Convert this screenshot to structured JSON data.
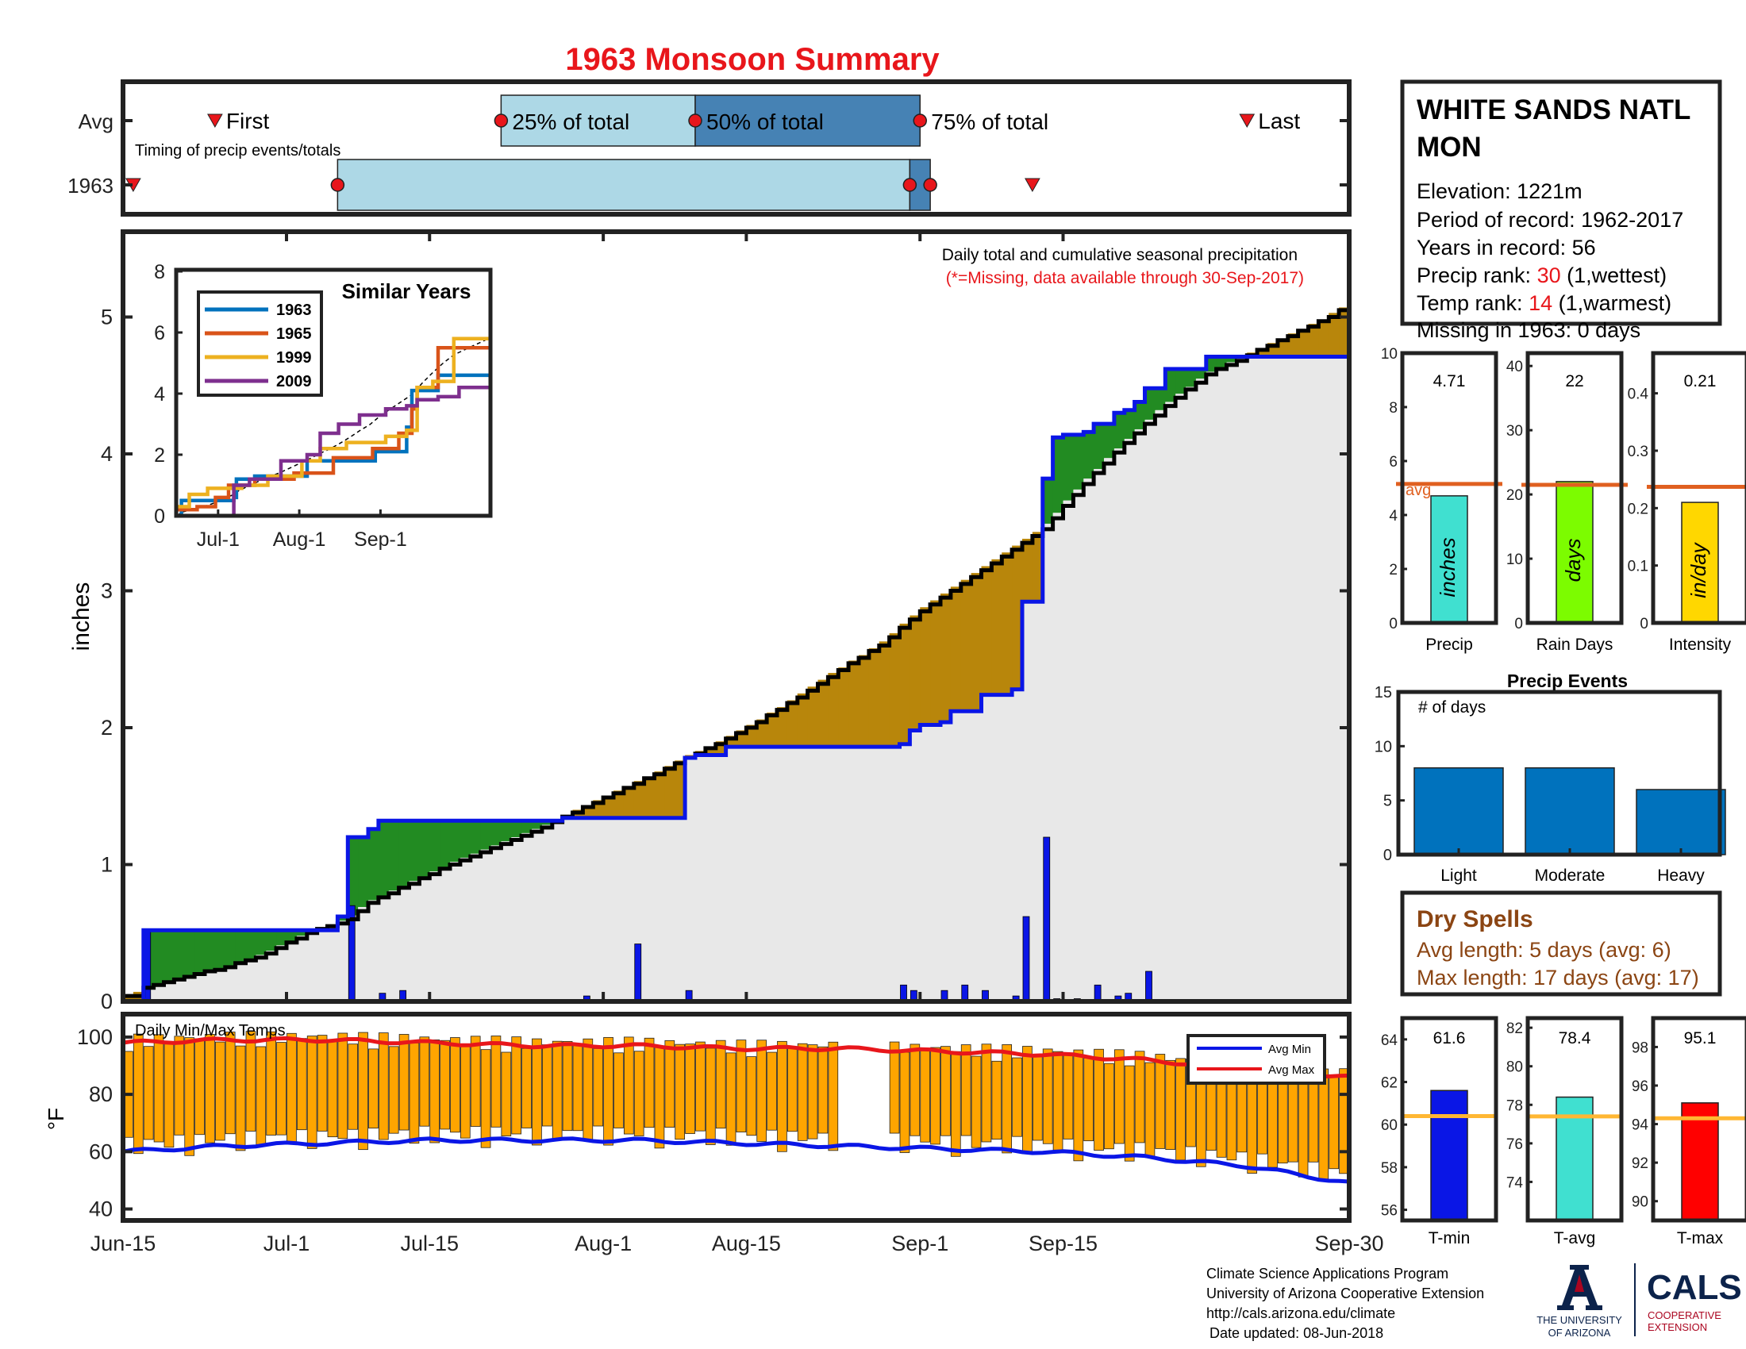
{
  "title": "1963 Monsoon Summary",
  "colors": {
    "title": "#e8161b",
    "cumYear": "#0a16e6",
    "cumAvg": "#000000",
    "aboveFill": "#228b22",
    "belowFill": "#b8860b",
    "baseFill": "#e8e8e8",
    "dailyBar": "#0a16e6",
    "tempBar": "#ffa500",
    "avgMin": "#0a16e6",
    "avgMax": "#e8161b",
    "refLine": "#e06020",
    "tempRef": "#ffb733",
    "lightBlue": "#add8e6",
    "steelBlue": "#4682b4",
    "eventBar": "#0072bd",
    "dry": "#8b4513",
    "uaNavy": "#0c234b",
    "uaRed": "#ab0520"
  },
  "timing": {
    "row_labels": [
      "Avg",
      "1963"
    ],
    "caption": "Timing of precip events/totals",
    "first_label": "First",
    "last_label": "Last",
    "pct25_label": "25% of total",
    "pct50_label": "50% of total",
    "pct75_label": "75% of total",
    "avg": {
      "first": 9,
      "p25": 37,
      "p50": 56,
      "p75": 78,
      "last": 110
    },
    "year": {
      "first": 1,
      "p25": 21,
      "p50": 77,
      "p75": 79,
      "last": 89
    }
  },
  "station": {
    "name": "WHITE SANDS NATL MON",
    "elevation": "Elevation: 1221m",
    "period": "Period of record: 1962-2017",
    "years": "Years in record: 56",
    "precip_rank_label": "Precip rank: ",
    "precip_rank": "30",
    "precip_rank_note": " (1,wettest)",
    "temp_rank_label": "Temp rank: ",
    "temp_rank": "14",
    "temp_rank_note": " (1,warmest)",
    "missing": "Missing in 1963: 0 days"
  },
  "main_chart": {
    "caption": "Daily total and cumulative seasonal precipitation",
    "missing_note": "(*=Missing, data available through 30-Sep-2017)",
    "ylabel": "inches",
    "y_ticks": [
      "0",
      "1",
      "2",
      "3",
      "4",
      "5"
    ],
    "x_ticks": [
      "Jun-15",
      "Jul-1",
      "Jul-15",
      "Aug-1",
      "Aug-15",
      "Sep-1",
      "Sep-15",
      "Sep-30"
    ]
  },
  "inset": {
    "title": "Similar Years",
    "y_ticks": [
      "0",
      "2",
      "4",
      "6",
      "8"
    ],
    "x_ticks": [
      "Jul-1",
      "Aug-1",
      "Sep-1"
    ],
    "legend": [
      "1963",
      "1965",
      "1999",
      "2009"
    ],
    "series_colors": [
      "#0072bd",
      "#d95319",
      "#edb120",
      "#7e2f8e"
    ]
  },
  "temp_chart": {
    "title": "Daily Min/Max Temps",
    "ylabel": "°F",
    "y_ticks": [
      "40",
      "60",
      "80",
      "100"
    ],
    "legend_min": "Avg Min",
    "legend_max": "Avg Max"
  },
  "stats": {
    "precip": {
      "label": "Precip",
      "value": "4.71",
      "unit": "inches",
      "avg": 5.15,
      "ticks": [
        "0",
        "2",
        "4",
        "6",
        "8",
        "10"
      ],
      "avg_label": "avg"
    },
    "raindays": {
      "label": "Rain Days",
      "value": "22",
      "unit": "days",
      "avg": 21.5,
      "ticks": [
        "0",
        "10",
        "20",
        "30",
        "40"
      ]
    },
    "intensity": {
      "label": "Intensity",
      "value": "0.21",
      "unit": "in/day",
      "avg": 0.237,
      "ticks": [
        "0",
        "0.1",
        "0.2",
        "0.3",
        "0.4"
      ]
    }
  },
  "events": {
    "title": "Precip Events",
    "ylabel": "# of days",
    "ticks": [
      "0",
      "5",
      "10",
      "15"
    ],
    "categories": [
      "Light",
      "Moderate",
      "Heavy"
    ],
    "values": [
      8,
      8,
      6
    ]
  },
  "dry_spells": {
    "title": "Dry Spells",
    "avg_length": "Avg length: 5 days (avg: 6)",
    "max_length": "Max length: 17 days (avg: 17)"
  },
  "temp_stats": {
    "tmin": {
      "label": "T-min",
      "value": "61.6",
      "avg": 60.4,
      "ticks": [
        "56",
        "58",
        "60",
        "62",
        "64"
      ]
    },
    "tavg": {
      "label": "T-avg",
      "value": "78.4",
      "avg": 77.4,
      "ticks": [
        "74",
        "76",
        "78",
        "80",
        "82"
      ]
    },
    "tmax": {
      "label": "T-max",
      "value": "95.1",
      "avg": 94.3,
      "ticks": [
        "90",
        "92",
        "94",
        "96",
        "98"
      ]
    }
  },
  "footer": {
    "line1": "Climate Science Applications Program",
    "line2": "University of Arizona Cooperative Extension",
    "line3": "http://cals.arizona.edu/climate",
    "line4": "Date updated: 08-Jun-2018",
    "ua_line1": "THE UNIVERSITY",
    "ua_line2": "OF ARIZONA",
    "cals": "CALS",
    "cals_sub1": "COOPERATIVE",
    "cals_sub2": "EXTENSION"
  },
  "chart_data": [
    {
      "type": "line",
      "title": "Daily total and cumulative seasonal precipitation",
      "ylabel": "inches",
      "x_range": [
        "Jun-15",
        "Sep-30"
      ],
      "ylim": [
        0,
        5.6
      ],
      "series": [
        {
          "name": "1963",
          "points": [
            [
              0,
              0.0
            ],
            [
              1,
              0.0
            ],
            [
              2,
              0.52
            ],
            [
              20,
              0.52
            ],
            [
              21,
              0.62
            ],
            [
              22,
              1.2
            ],
            [
              23,
              1.2
            ],
            [
              24,
              1.26
            ],
            [
              25,
              1.32
            ],
            [
              38,
              1.32
            ],
            [
              39,
              1.32
            ],
            [
              42,
              1.32
            ],
            [
              43,
              1.34
            ],
            [
              53,
              1.34
            ],
            [
              54,
              1.34
            ],
            [
              55,
              1.78
            ],
            [
              56,
              1.8
            ],
            [
              58,
              1.8
            ],
            [
              59,
              1.86
            ],
            [
              75,
              1.86
            ],
            [
              76,
              1.88
            ],
            [
              77,
              1.98
            ],
            [
              78,
              2.02
            ],
            [
              80,
              2.04
            ],
            [
              81,
              2.12
            ],
            [
              83,
              2.12
            ],
            [
              84,
              2.24
            ],
            [
              86,
              2.24
            ],
            [
              87,
              2.28
            ],
            [
              88,
              2.92
            ],
            [
              89,
              2.92
            ],
            [
              90,
              3.82
            ],
            [
              91,
              4.12
            ],
            [
              92,
              4.14
            ],
            [
              94,
              4.16
            ],
            [
              95,
              4.22
            ],
            [
              97,
              4.3
            ],
            [
              98,
              4.32
            ],
            [
              99,
              4.38
            ],
            [
              100,
              4.48
            ],
            [
              101,
              4.48
            ],
            [
              102,
              4.62
            ],
            [
              103,
              4.62
            ],
            [
              106,
              4.71
            ],
            [
              120,
              4.71
            ]
          ]
        },
        {
          "name": "Avg",
          "points": [
            [
              0,
              0.04
            ],
            [
              1,
              0.04
            ],
            [
              2,
              0.1
            ],
            [
              4,
              0.14
            ],
            [
              7,
              0.2
            ],
            [
              10,
              0.25
            ],
            [
              14,
              0.35
            ],
            [
              18,
              0.5
            ],
            [
              22,
              0.6
            ],
            [
              24,
              0.72
            ],
            [
              28,
              0.86
            ],
            [
              32,
              1.0
            ],
            [
              36,
              1.12
            ],
            [
              40,
              1.24
            ],
            [
              44,
              1.38
            ],
            [
              48,
              1.52
            ],
            [
              52,
              1.66
            ],
            [
              55,
              1.78
            ],
            [
              58,
              1.88
            ],
            [
              62,
              2.04
            ],
            [
              66,
              2.22
            ],
            [
              70,
              2.42
            ],
            [
              74,
              2.6
            ],
            [
              78,
              2.85
            ],
            [
              82,
              3.05
            ],
            [
              86,
              3.25
            ],
            [
              90,
              3.45
            ],
            [
              94,
              3.78
            ],
            [
              98,
              4.08
            ],
            [
              102,
              4.35
            ],
            [
              106,
              4.58
            ],
            [
              110,
              4.72
            ],
            [
              114,
              4.86
            ],
            [
              118,
              5.0
            ],
            [
              120,
              5.1
            ]
          ]
        }
      ],
      "daily_bars": [
        [
          2,
          0.52
        ],
        [
          22,
          0.7
        ],
        [
          25,
          0.06
        ],
        [
          27,
          0.08
        ],
        [
          45,
          0.04
        ],
        [
          50,
          0.42
        ],
        [
          55,
          0.08
        ],
        [
          76,
          0.12
        ],
        [
          77,
          0.08
        ],
        [
          80,
          0.08
        ],
        [
          82,
          0.12
        ],
        [
          84,
          0.08
        ],
        [
          87,
          0.04
        ],
        [
          88,
          0.62
        ],
        [
          90,
          1.2
        ],
        [
          91,
          0.02
        ],
        [
          93,
          0.02
        ],
        [
          95,
          0.12
        ],
        [
          97,
          0.04
        ],
        [
          98,
          0.06
        ],
        [
          100,
          0.22
        ]
      ]
    },
    {
      "type": "line",
      "title": "Similar Years",
      "x_ticks": [
        "Jul-1",
        "Aug-1",
        "Sep-1"
      ],
      "ylim": [
        0,
        8
      ],
      "series": [
        {
          "name": "1963",
          "points": [
            [
              0,
              0.0
            ],
            [
              2,
              0.5
            ],
            [
              22,
              0.6
            ],
            [
              23,
              1.2
            ],
            [
              30,
              1.3
            ],
            [
              50,
              1.8
            ],
            [
              54,
              1.8
            ],
            [
              76,
              2.1
            ],
            [
              88,
              2.9
            ],
            [
              90,
              4.1
            ],
            [
              100,
              4.6
            ],
            [
              120,
              4.7
            ]
          ]
        },
        {
          "name": "1965",
          "points": [
            [
              0,
              0.2
            ],
            [
              8,
              0.3
            ],
            [
              15,
              0.6
            ],
            [
              20,
              1.0
            ],
            [
              30,
              1.2
            ],
            [
              45,
              1.4
            ],
            [
              60,
              1.9
            ],
            [
              75,
              2.2
            ],
            [
              85,
              2.7
            ],
            [
              90,
              3.5
            ],
            [
              92,
              4.2
            ],
            [
              100,
              5.5
            ],
            [
              120,
              5.5
            ]
          ]
        },
        {
          "name": "1999",
          "points": [
            [
              0,
              0.3
            ],
            [
              5,
              0.7
            ],
            [
              12,
              0.9
            ],
            [
              25,
              1.0
            ],
            [
              35,
              1.3
            ],
            [
              48,
              1.8
            ],
            [
              55,
              2.2
            ],
            [
              65,
              2.4
            ],
            [
              80,
              2.6
            ],
            [
              88,
              2.8
            ],
            [
              92,
              4.2
            ],
            [
              98,
              4.4
            ],
            [
              106,
              5.8
            ],
            [
              120,
              6.0
            ]
          ]
        },
        {
          "name": "2009",
          "points": [
            [
              0,
              0.0
            ],
            [
              20,
              0.0
            ],
            [
              22,
              1.0
            ],
            [
              28,
              1.2
            ],
            [
              40,
              1.8
            ],
            [
              50,
              2.0
            ],
            [
              55,
              2.7
            ],
            [
              62,
              3.0
            ],
            [
              70,
              3.3
            ],
            [
              80,
              3.5
            ],
            [
              88,
              3.6
            ],
            [
              92,
              3.8
            ],
            [
              100,
              3.9
            ],
            [
              108,
              4.2
            ],
            [
              120,
              4.3
            ]
          ]
        }
      ]
    },
    {
      "type": "bar",
      "title": "Daily Min/Max Temps",
      "ylabel": "°F",
      "ylim": [
        36,
        108
      ],
      "avg_min": [
        [
          0,
          60
        ],
        [
          10,
          62
        ],
        [
          20,
          63
        ],
        [
          30,
          64
        ],
        [
          40,
          64
        ],
        [
          50,
          64
        ],
        [
          60,
          63
        ],
        [
          70,
          62
        ],
        [
          80,
          61
        ],
        [
          90,
          60
        ],
        [
          100,
          58
        ],
        [
          110,
          55
        ],
        [
          120,
          49
        ]
      ],
      "avg_max": [
        [
          0,
          98
        ],
        [
          10,
          99
        ],
        [
          20,
          99
        ],
        [
          30,
          98
        ],
        [
          40,
          97
        ],
        [
          50,
          97
        ],
        [
          60,
          96
        ],
        [
          70,
          96
        ],
        [
          80,
          95
        ],
        [
          90,
          94
        ],
        [
          100,
          92
        ],
        [
          110,
          89
        ],
        [
          120,
          86
        ]
      ]
    },
    {
      "type": "bar",
      "title": "Precip Events",
      "categories": [
        "Light",
        "Moderate",
        "Heavy"
      ],
      "values": [
        8,
        8,
        6
      ],
      "ylim": [
        0,
        15
      ]
    }
  ]
}
